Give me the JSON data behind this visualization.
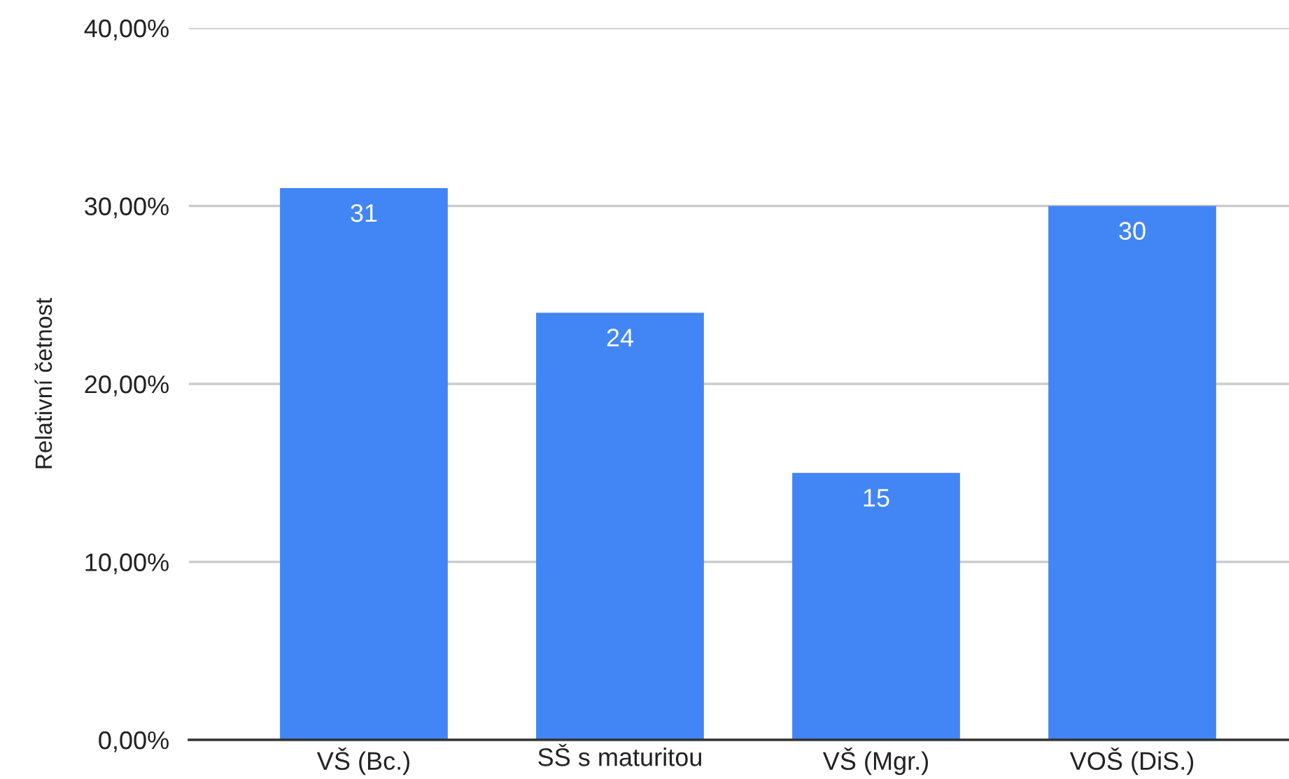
{
  "chart_data": {
    "type": "bar",
    "ylabel": "Relativní četnost",
    "categories": [
      "VŠ (Bc.)",
      "SŠ s maturitou",
      "VŠ (Mgr.)",
      "VOŠ (DiS.)"
    ],
    "values": [
      31,
      24,
      15,
      30
    ],
    "color": "#4285f4",
    "ylim": [
      0,
      40
    ],
    "yticks": [
      {
        "value": 0,
        "label": "0,00%"
      },
      {
        "value": 10,
        "label": "10,00%"
      },
      {
        "value": 20,
        "label": "20,00%"
      },
      {
        "value": 30,
        "label": "30,00%"
      },
      {
        "value": 40,
        "label": "40,00%"
      }
    ],
    "grid": "y",
    "data_labels": true
  }
}
